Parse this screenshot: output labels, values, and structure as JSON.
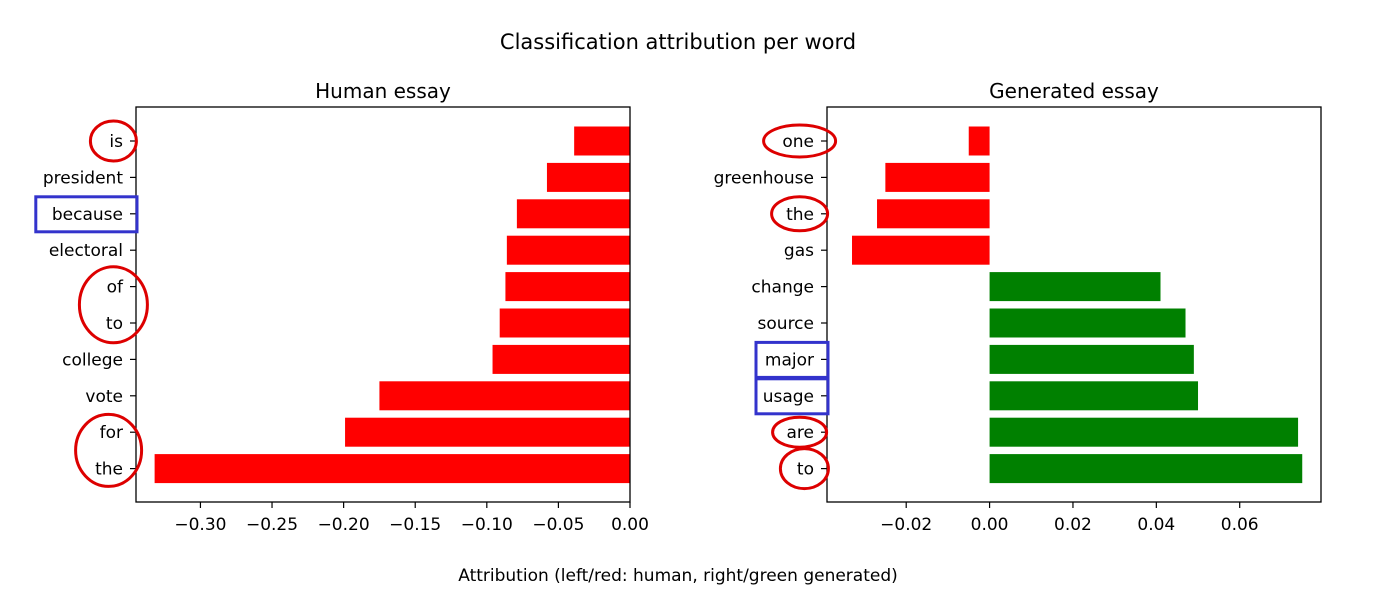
{
  "figure": {
    "suptitle": "Classification attribution per word",
    "xlabel": "Attribution (left/red: human, right/green generated)"
  },
  "colors": {
    "negative": "#ff0000",
    "positive": "#008000",
    "circle_annotation": "#dd0000",
    "box_annotation": "#3333cc"
  },
  "chart_data": [
    {
      "type": "bar",
      "orientation": "horizontal",
      "title": "Human essay",
      "xlabel": "",
      "ylabel": "",
      "categories": [
        "is",
        "president",
        "because",
        "electoral",
        "of",
        "to",
        "college",
        "vote",
        "for",
        "the"
      ],
      "values": [
        -0.039,
        -0.058,
        -0.079,
        -0.086,
        -0.087,
        -0.091,
        -0.096,
        -0.175,
        -0.199,
        -0.332
      ],
      "xlim": [
        -0.345,
        0.0
      ],
      "xticks": [
        "−0.30",
        "−0.25",
        "−0.20",
        "−0.15",
        "−0.10",
        "−0.05",
        "0.00"
      ],
      "xtick_values": [
        -0.3,
        -0.25,
        -0.2,
        -0.15,
        -0.1,
        -0.05,
        0.0
      ],
      "grid": false,
      "annotations": {
        "circled": [
          "is",
          "of",
          "to",
          "for",
          "the"
        ],
        "boxed": [
          "because"
        ]
      }
    },
    {
      "type": "bar",
      "orientation": "horizontal",
      "title": "Generated essay",
      "xlabel": "",
      "ylabel": "",
      "categories": [
        "one",
        "greenhouse",
        "the",
        "gas",
        "change",
        "source",
        "major",
        "usage",
        "are",
        "to"
      ],
      "values": [
        -0.005,
        -0.025,
        -0.027,
        -0.033,
        0.041,
        0.047,
        0.049,
        0.05,
        0.074,
        0.075
      ],
      "xlim": [
        -0.039,
        0.0795
      ],
      "xticks": [
        "−0.02",
        "0.00",
        "0.02",
        "0.04",
        "0.06"
      ],
      "xtick_values": [
        -0.02,
        0.0,
        0.02,
        0.04,
        0.06
      ],
      "grid": false,
      "annotations": {
        "circled": [
          "one",
          "the",
          "are",
          "to"
        ],
        "boxed": [
          "major",
          "usage"
        ]
      }
    }
  ]
}
